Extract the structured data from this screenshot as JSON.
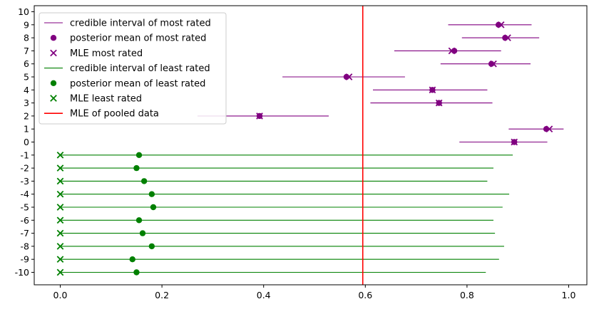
{
  "chart_data": {
    "type": "scatter",
    "title": "",
    "xlabel": "",
    "ylabel": "",
    "xlim": [
      -0.05,
      1.03
    ],
    "ylim": [
      -11,
      10
    ],
    "x_ticks": [
      0.0,
      0.2,
      0.4,
      0.6,
      0.8,
      1.0
    ],
    "x_tick_labels": [
      "0.0",
      "0.2",
      "0.4",
      "0.6",
      "0.8",
      "1.0"
    ],
    "y_ticks": [
      10,
      9,
      8,
      7,
      6,
      5,
      4,
      3,
      2,
      1,
      0,
      -1,
      -2,
      -3,
      -4,
      -5,
      -6,
      -7,
      -8,
      -9,
      -10
    ],
    "y_tick_labels": [
      "10",
      "9",
      "8",
      "7",
      "6",
      "5",
      "4",
      "3",
      "2",
      "1",
      "0",
      "-1",
      "-2",
      "-3",
      "-4",
      "-5",
      "-6",
      "-7",
      "-8",
      "-9",
      "-10"
    ],
    "grid": false,
    "legend_position": "top-left",
    "colors": {
      "most": "#800080",
      "least": "#008000",
      "pooled": "#ff0000"
    },
    "legend": [
      {
        "label": "credible interval of most rated",
        "marker": "line",
        "color": "#800080"
      },
      {
        "label": "posterior mean of most rated",
        "marker": "circle",
        "color": "#800080"
      },
      {
        "label": "MLE most rated",
        "marker": "x",
        "color": "#800080"
      },
      {
        "label": "credible interval of least rated",
        "marker": "line",
        "color": "#008000"
      },
      {
        "label": "posterior mean of least rated",
        "marker": "circle",
        "color": "#008000"
      },
      {
        "label": "MLE least rated",
        "marker": "x",
        "color": "#008000"
      },
      {
        "label": "MLE of pooled data",
        "marker": "line",
        "color": "#ff0000"
      }
    ],
    "pooled_mle": 0.595,
    "most_rated": [
      {
        "y": 9,
        "ci": [
          0.763,
          0.927
        ],
        "mean": 0.862,
        "mle": 0.867
      },
      {
        "y": 8,
        "ci": [
          0.79,
          0.942
        ],
        "mean": 0.875,
        "mle": 0.88
      },
      {
        "y": 7,
        "ci": [
          0.657,
          0.867
        ],
        "mean": 0.775,
        "mle": 0.77
      },
      {
        "y": 6,
        "ci": [
          0.748,
          0.925
        ],
        "mean": 0.848,
        "mle": 0.852
      },
      {
        "y": 5,
        "ci": [
          0.437,
          0.678
        ],
        "mean": 0.563,
        "mle": 0.568
      },
      {
        "y": 4,
        "ci": [
          0.615,
          0.84
        ],
        "mean": 0.732,
        "mle": 0.732
      },
      {
        "y": 3,
        "ci": [
          0.61,
          0.85
        ],
        "mean": 0.745,
        "mle": 0.745
      },
      {
        "y": 2,
        "ci": [
          0.27,
          0.528
        ],
        "mean": 0.392,
        "mle": 0.392
      },
      {
        "y": 1,
        "ci": [
          0.882,
          0.99
        ],
        "mean": 0.956,
        "mle": 0.962
      },
      {
        "y": 0,
        "ci": [
          0.785,
          0.958
        ],
        "mean": 0.893,
        "mle": 0.893
      }
    ],
    "least_rated": [
      {
        "y": -1,
        "ci": [
          0.0,
          0.89
        ],
        "mean": 0.155,
        "mle": 0.0
      },
      {
        "y": -2,
        "ci": [
          0.0,
          0.852
        ],
        "mean": 0.15,
        "mle": 0.0
      },
      {
        "y": -3,
        "ci": [
          0.0,
          0.84
        ],
        "mean": 0.165,
        "mle": 0.0
      },
      {
        "y": -4,
        "ci": [
          0.0,
          0.883
        ],
        "mean": 0.18,
        "mle": 0.0
      },
      {
        "y": -5,
        "ci": [
          0.0,
          0.87
        ],
        "mean": 0.183,
        "mle": 0.0
      },
      {
        "y": -6,
        "ci": [
          0.0,
          0.852
        ],
        "mean": 0.155,
        "mle": 0.0
      },
      {
        "y": -7,
        "ci": [
          0.0,
          0.855
        ],
        "mean": 0.162,
        "mle": 0.0
      },
      {
        "y": -8,
        "ci": [
          0.0,
          0.873
        ],
        "mean": 0.18,
        "mle": 0.0
      },
      {
        "y": -9,
        "ci": [
          0.0,
          0.863
        ],
        "mean": 0.142,
        "mle": 0.0
      },
      {
        "y": -10,
        "ci": [
          0.0,
          0.837
        ],
        "mean": 0.15,
        "mle": 0.0
      }
    ]
  }
}
